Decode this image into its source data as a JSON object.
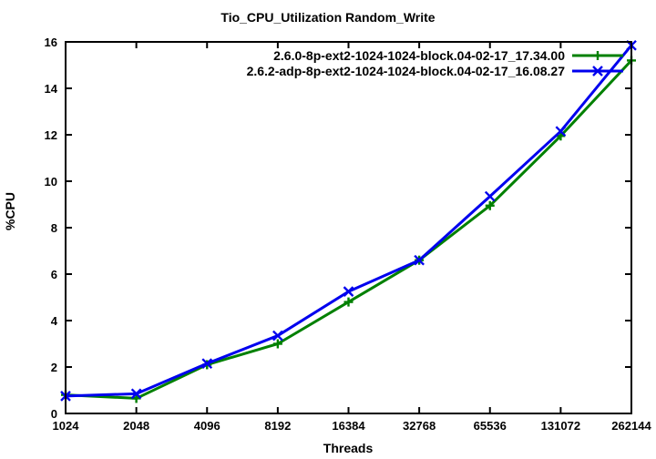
{
  "figure": {
    "background": "#ffffff",
    "axis_color": "#000000",
    "text_color": "#000000"
  },
  "chart_data": {
    "type": "line",
    "title": "Tio_CPU_Utilization Random_Write",
    "xlabel": "Threads",
    "ylabel": "%CPU",
    "x_scale": "log2-categorical-evenly-spaced",
    "categories": [
      "1024",
      "2048",
      "4096",
      "8192",
      "16384",
      "32768",
      "65536",
      "131072",
      "262144"
    ],
    "y_ticks": [
      0,
      2,
      4,
      6,
      8,
      10,
      12,
      14,
      16
    ],
    "ylim": [
      0,
      16
    ],
    "grid": false,
    "legend_position": "top-right-inside",
    "series": [
      {
        "name": "2.6.0-8p-ext2-1024-1024-block.04-02-17_17.34.00",
        "color": "#008000",
        "marker": "plus",
        "values": [
          0.8,
          0.65,
          2.1,
          3.0,
          4.8,
          6.6,
          8.95,
          11.95,
          15.2
        ]
      },
      {
        "name": "2.6.2-adp-8p-ext2-1024-1024-block.04-02-17_16.08.27",
        "color": "#0000ee",
        "marker": "cross",
        "values": [
          0.75,
          0.85,
          2.15,
          3.35,
          5.25,
          6.6,
          9.35,
          12.15,
          15.85
        ]
      }
    ]
  }
}
